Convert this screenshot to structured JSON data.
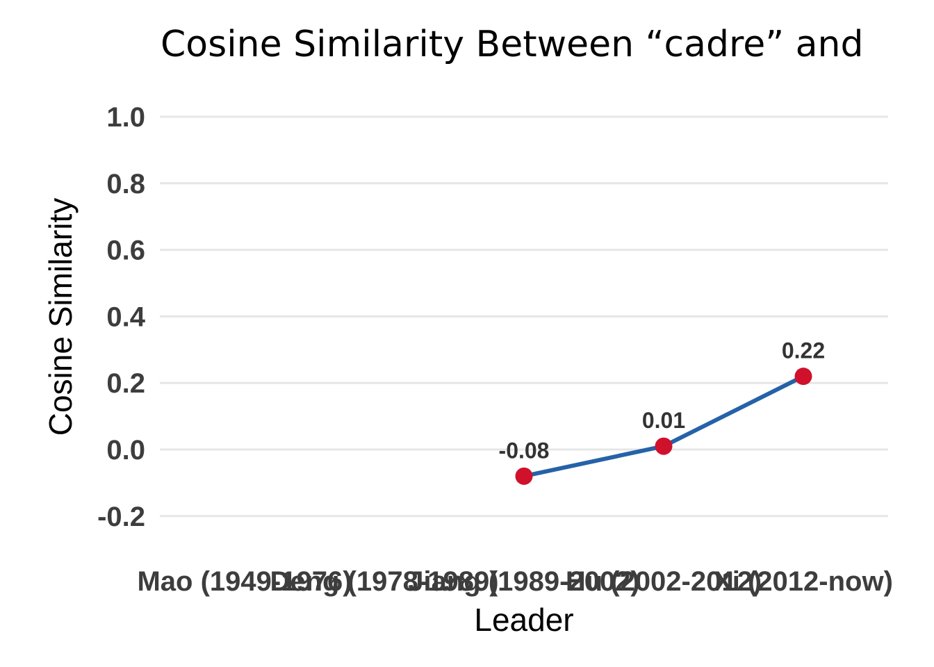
{
  "chart_data": {
    "type": "line",
    "title": "Cosine Similarity Between “cadre” and",
    "xlabel": "Leader",
    "ylabel": "Cosine Similarity",
    "categories": [
      "Mao (1949-1976)",
      "Deng (1978-1989)",
      "Jiang (1989-2002)",
      "Hu (2002-2012)",
      "Xi (2012-now)"
    ],
    "series": [
      {
        "values": [
          null,
          null,
          -0.08,
          0.01,
          0.22
        ],
        "labels": [
          "",
          "",
          "-0.08",
          "0.01",
          "0.22"
        ]
      }
    ],
    "y_ticks": [
      "-0.2",
      "0.0",
      "0.2",
      "0.4",
      "0.6",
      "0.8",
      "1.0"
    ],
    "ylim": [
      -0.25,
      1.05
    ],
    "grid": true,
    "legend": "none",
    "colors": {
      "line": "#2562a8",
      "marker": "#d0112b",
      "grid": "#e6e6e6"
    }
  }
}
